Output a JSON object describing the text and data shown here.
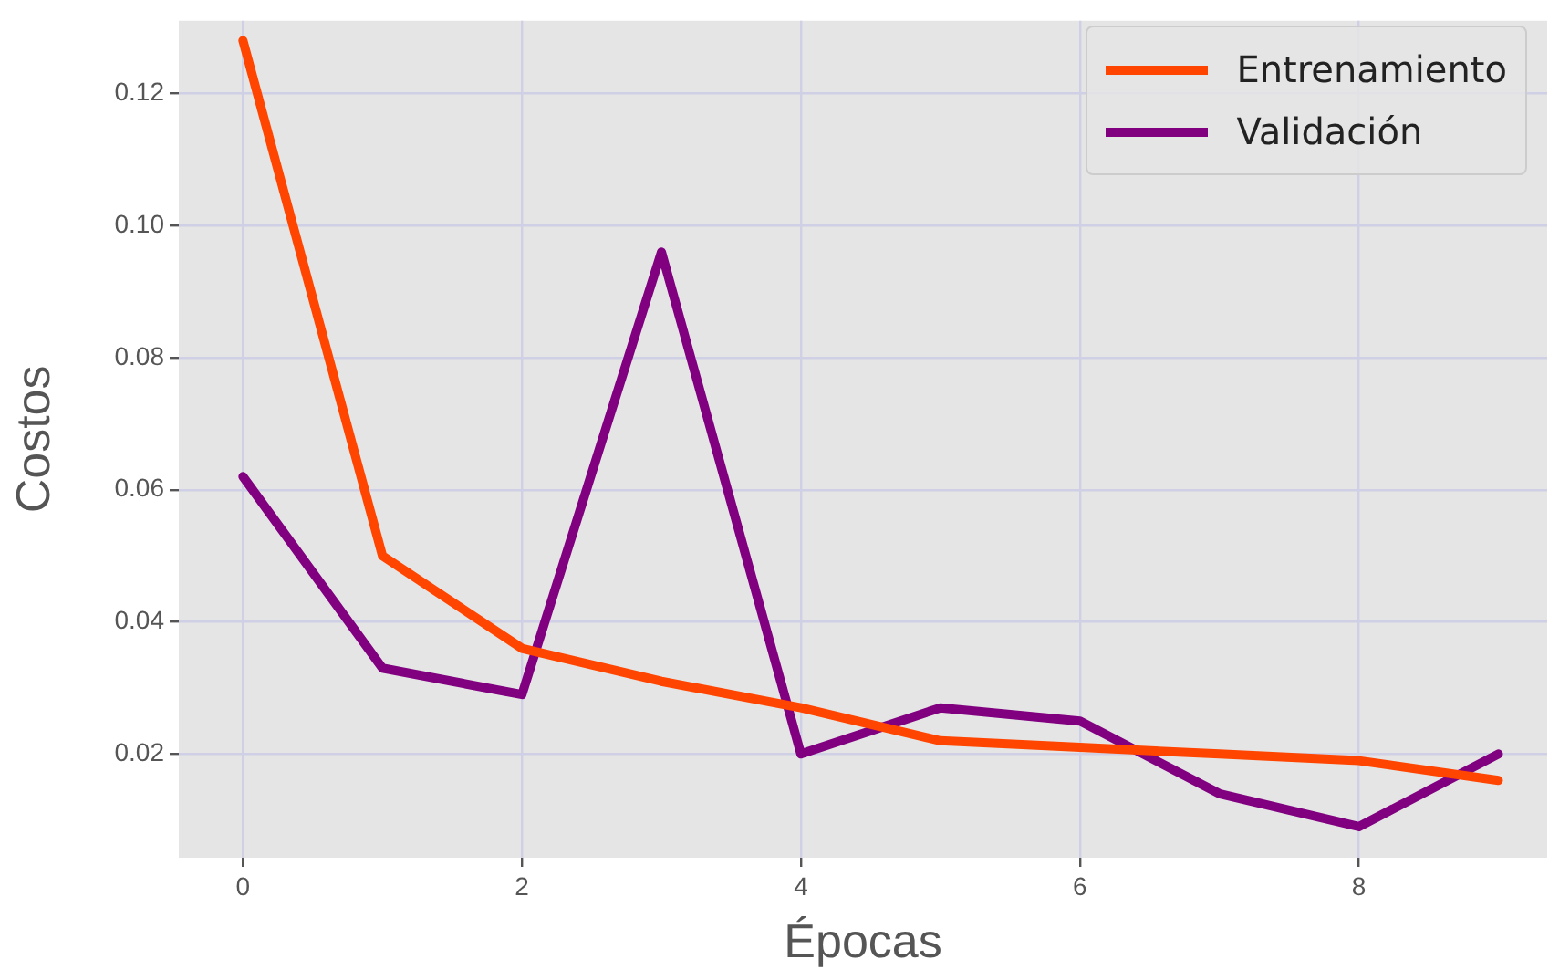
{
  "chart_data": {
    "type": "line",
    "xlabel": "Épocas",
    "ylabel": "Costos",
    "x": [
      0,
      1,
      2,
      3,
      4,
      5,
      6,
      7,
      8,
      9
    ],
    "series": [
      {
        "name": "Entrenamiento",
        "color": "#ff4500",
        "values": [
          0.128,
          0.05,
          0.036,
          0.031,
          0.027,
          0.022,
          0.021,
          0.02,
          0.019,
          0.016
        ]
      },
      {
        "name": "Validación",
        "color": "#800080",
        "values": [
          0.062,
          0.033,
          0.029,
          0.096,
          0.02,
          0.027,
          0.025,
          0.014,
          0.009,
          0.02
        ]
      }
    ],
    "xlim": [
      -0.46,
      9.35
    ],
    "xticks": [
      0,
      2,
      4,
      6,
      8
    ],
    "ylim": [
      0.0043,
      0.131
    ],
    "yticks": [
      0.02,
      0.04,
      0.06,
      0.08,
      {
        "value": 0.1,
        "label": "0.10"
      },
      0.12
    ],
    "grid": true,
    "legend": "top right",
    "marker": "none",
    "line_style": "solid"
  }
}
